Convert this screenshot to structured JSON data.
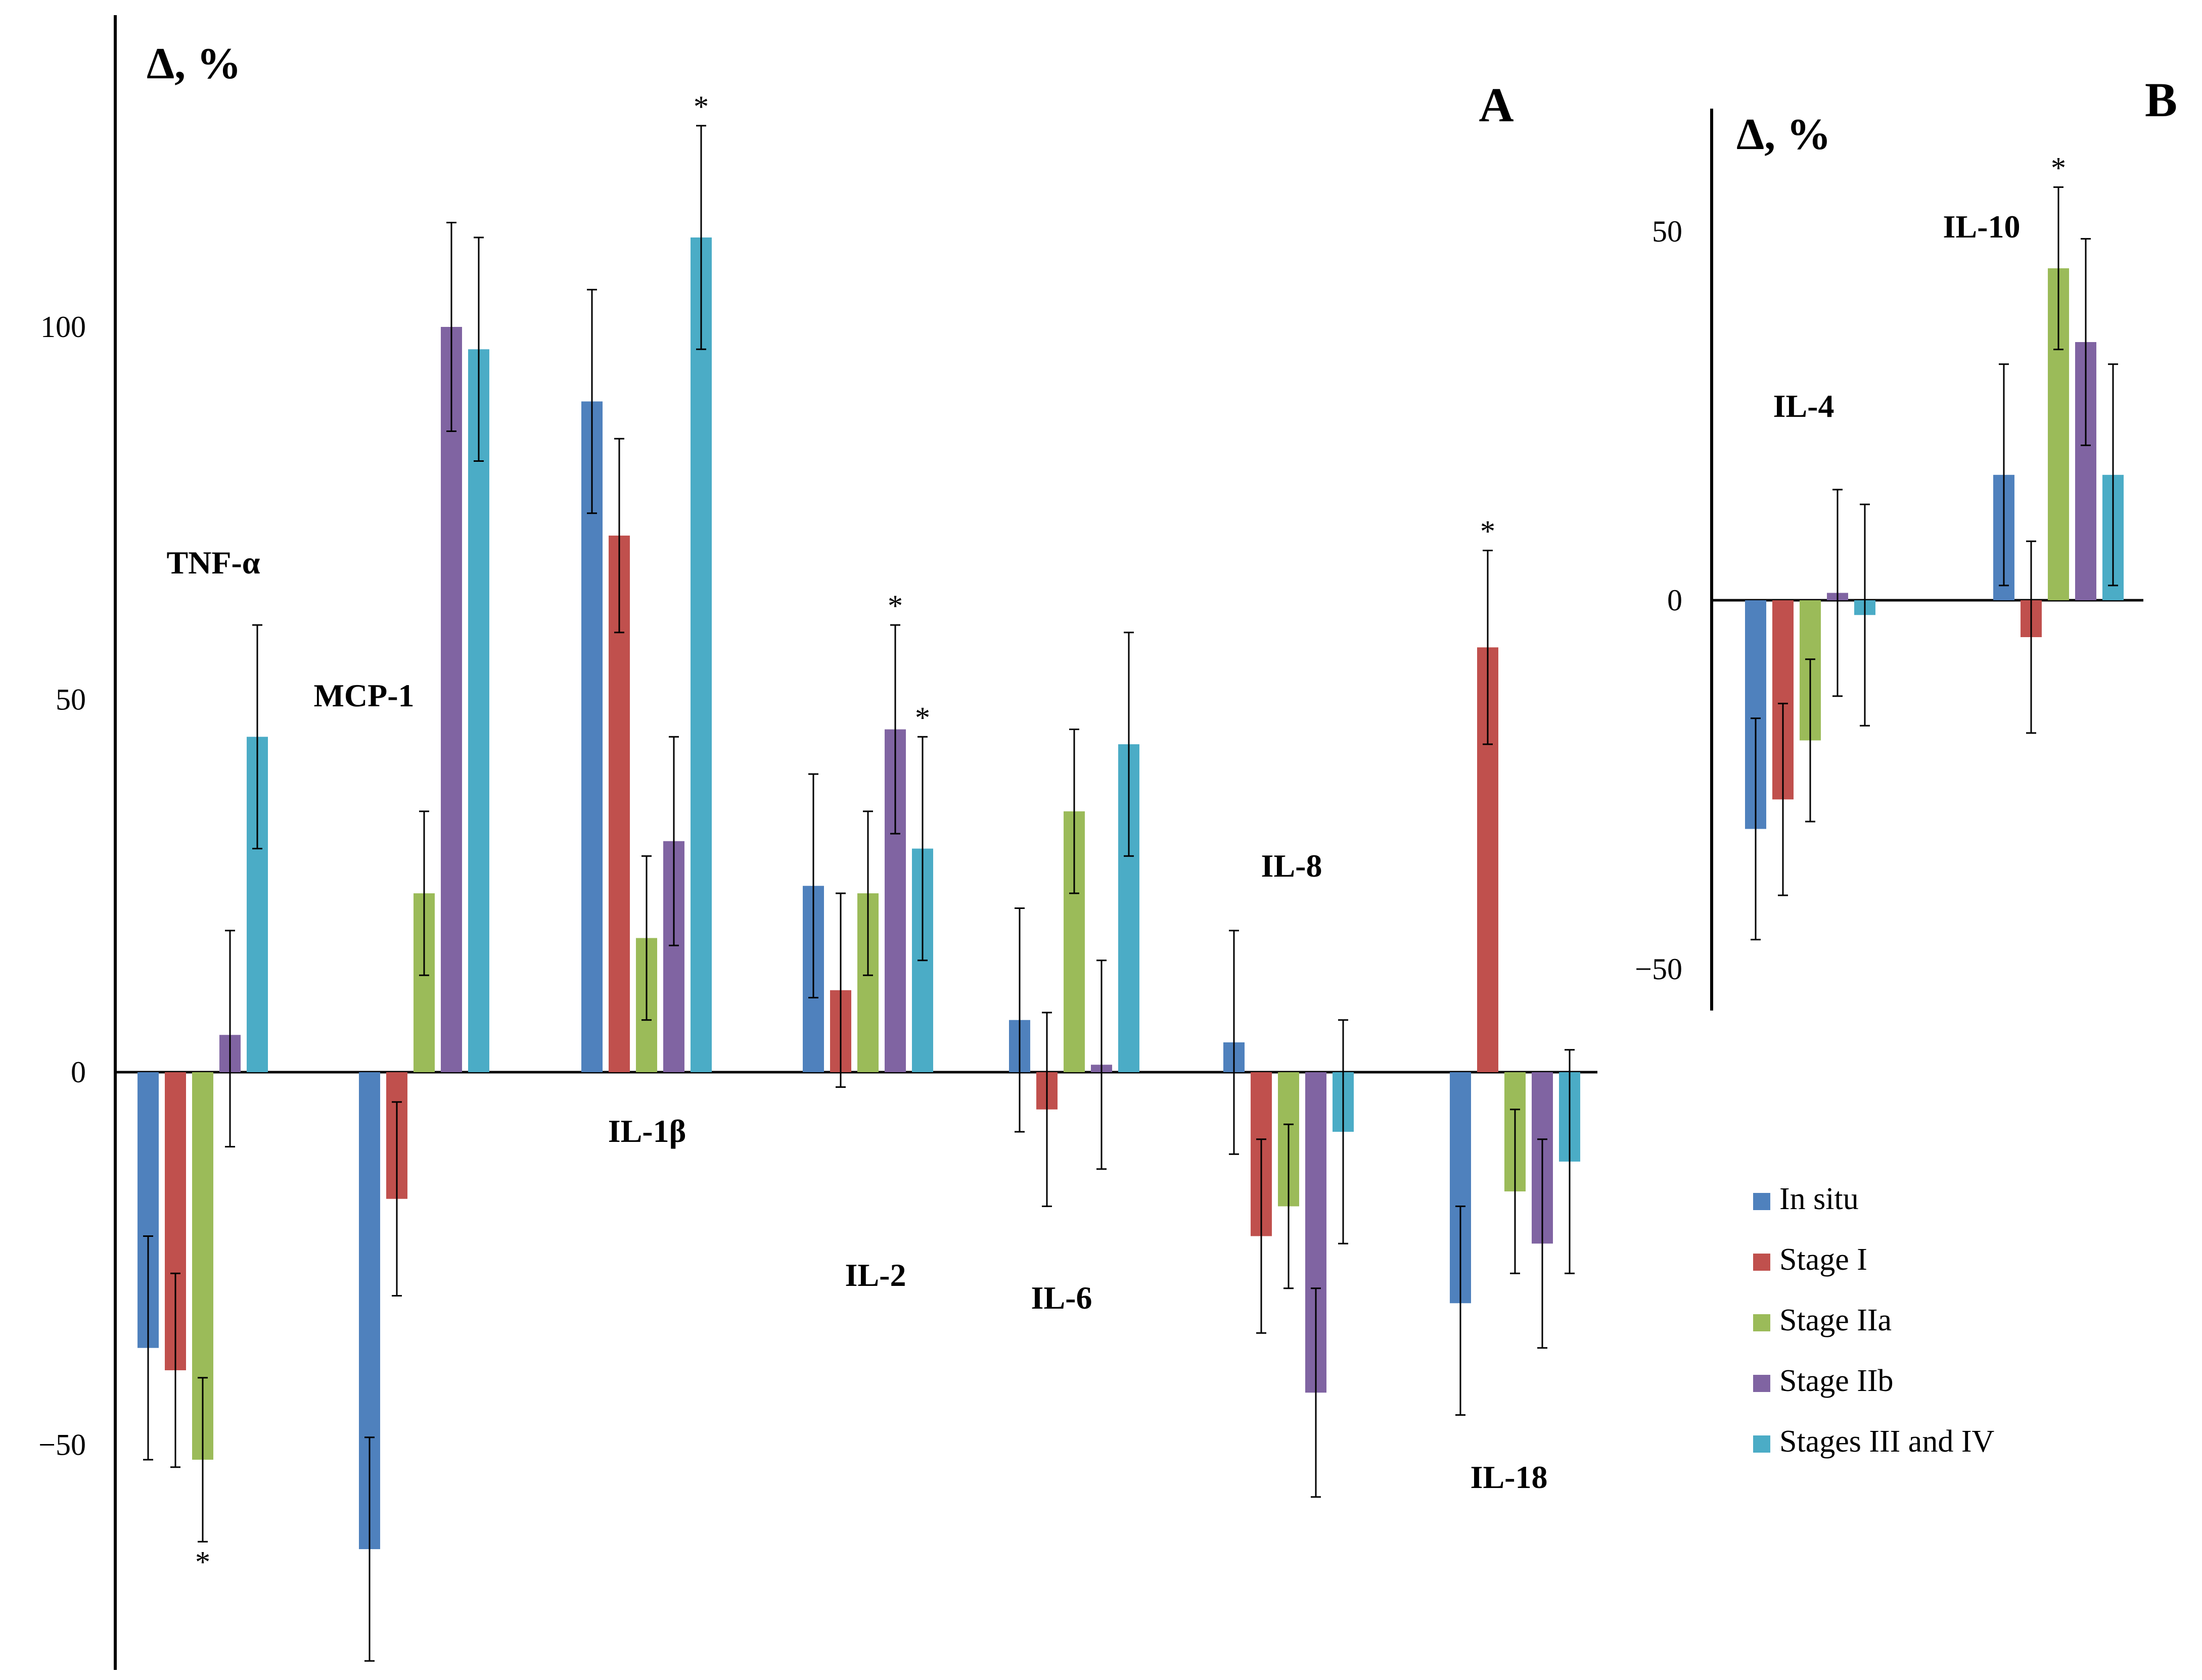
{
  "chart_data": [
    {
      "panel": "A",
      "type": "bar",
      "ylabel": "Δ, %",
      "ylim": [
        -80,
        140
      ],
      "yticks": [
        -50,
        0,
        50,
        100
      ],
      "ytick_labels": [
        "−50",
        "0",
        "50",
        "100"
      ],
      "series_names": [
        "In situ",
        "Stage I",
        "Stage IIa",
        "Stage IIb",
        "Stages III and IV"
      ],
      "groups": [
        {
          "label": "TNF-α",
          "values": [
            -37,
            -40,
            -52,
            5,
            45
          ],
          "err_low": [
            15,
            13,
            11,
            15,
            15
          ],
          "err_high": [
            15,
            13,
            11,
            14,
            15
          ],
          "stars": [
            2
          ]
        },
        {
          "label": "MCP-1",
          "values": [
            -64,
            -17,
            24,
            100,
            97
          ],
          "err_low": [
            15,
            13,
            11,
            14,
            15
          ],
          "err_high": [
            15,
            13,
            11,
            14,
            15
          ],
          "stars": []
        },
        {
          "label": "IL-1β",
          "values": [
            90,
            72,
            18,
            31,
            112
          ],
          "err_low": [
            15,
            13,
            11,
            14,
            15
          ],
          "err_high": [
            15,
            13,
            11,
            14,
            15
          ],
          "stars": [
            4
          ]
        },
        {
          "label": "IL-2",
          "values": [
            25,
            11,
            24,
            46,
            30
          ],
          "err_low": [
            15,
            13,
            11,
            14,
            15
          ],
          "err_high": [
            15,
            13,
            11,
            14,
            15
          ],
          "stars": [
            3,
            4
          ]
        },
        {
          "label": "IL-6",
          "values": [
            7,
            -5,
            35,
            1,
            44
          ],
          "err_low": [
            15,
            13,
            11,
            14,
            15
          ],
          "err_high": [
            15,
            13,
            11,
            14,
            15
          ],
          "stars": []
        },
        {
          "label": "IL-8",
          "values": [
            4,
            -22,
            -18,
            -43,
            -8
          ],
          "err_low": [
            15,
            13,
            11,
            14,
            15
          ],
          "err_high": [
            15,
            13,
            11,
            14,
            15
          ],
          "stars": []
        },
        {
          "label": "IL-18",
          "values": [
            -31,
            57,
            -16,
            -23,
            -12
          ],
          "err_low": [
            15,
            13,
            11,
            14,
            15
          ],
          "err_high": [
            13,
            13,
            11,
            14,
            15
          ],
          "stars": [
            1
          ]
        }
      ]
    },
    {
      "panel": "B",
      "type": "bar",
      "ylabel": "Δ, %",
      "ylim": [
        -55,
        66
      ],
      "yticks": [
        -50,
        0,
        50
      ],
      "ytick_labels": [
        "−50",
        "0",
        "50"
      ],
      "series_names": [
        "In situ",
        "Stage I",
        "Stage IIa",
        "Stage IIb",
        "Stages III and IV"
      ],
      "groups": [
        {
          "label": "IL-4",
          "values": [
            -31,
            -27,
            -19,
            1,
            -2
          ],
          "err_low": [
            15,
            13,
            11,
            14,
            15
          ],
          "err_high": [
            15,
            13,
            11,
            14,
            15
          ],
          "stars": []
        },
        {
          "label": "IL-10",
          "values": [
            17,
            -5,
            45,
            35,
            17
          ],
          "err_low": [
            15,
            13,
            11,
            14,
            15
          ],
          "err_high": [
            15,
            13,
            11,
            14,
            15
          ],
          "stars": [
            2
          ]
        }
      ]
    }
  ],
  "legend": [
    {
      "label": "In situ",
      "color": "#4f81bd"
    },
    {
      "label": "Stage I",
      "color": "#c0504d"
    },
    {
      "label": "Stage IIa",
      "color": "#9bbb59"
    },
    {
      "label": "Stage IIb",
      "color": "#8064a2"
    },
    {
      "label": "Stages III and IV",
      "color": "#4bacc6"
    }
  ],
  "significance_marker": "*"
}
